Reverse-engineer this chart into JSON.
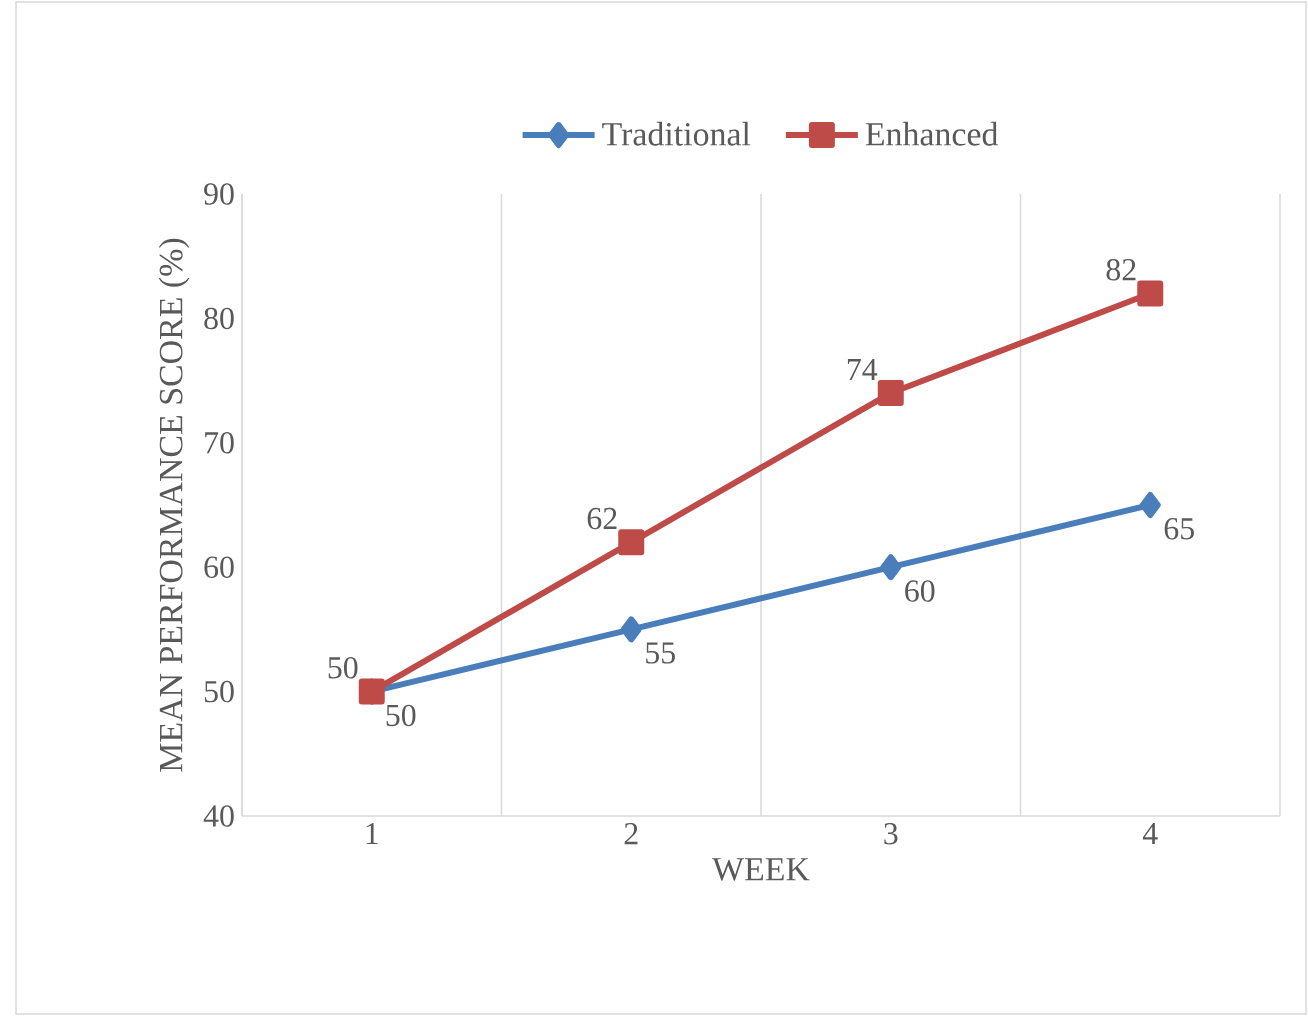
{
  "chart_data": {
    "type": "line",
    "xlabel": "WEEK",
    "ylabel": "MEAN PERFORMANCE SCORE (%)",
    "categories": [
      "1",
      "2",
      "3",
      "4"
    ],
    "series": [
      {
        "name": "Traditional",
        "color": "#4a7ebb",
        "values": [
          50,
          55,
          60,
          65
        ],
        "marker": "diamond"
      },
      {
        "name": "Enhanced",
        "color": "#be4b48",
        "values": [
          50,
          62,
          74,
          82
        ],
        "marker": "square"
      }
    ],
    "ylim": [
      40,
      90
    ],
    "yticks": [
      40,
      50,
      60,
      70,
      80,
      90
    ],
    "grid": "x",
    "legend": "top",
    "data_labels": true,
    "line_style": "solid"
  }
}
